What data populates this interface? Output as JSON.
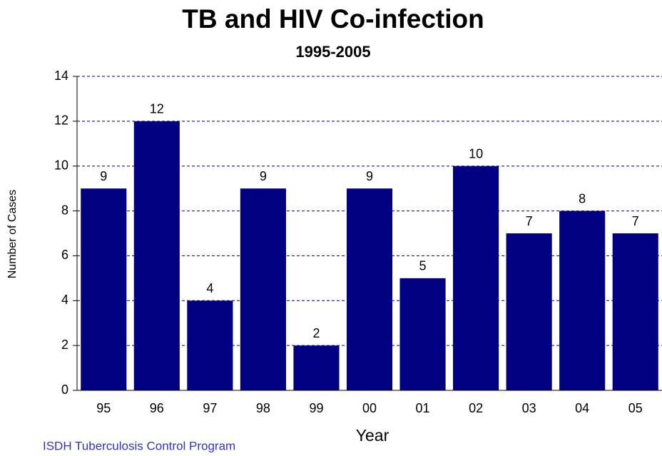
{
  "chart_data": {
    "type": "bar",
    "title": "TB and HIV Co-infection",
    "subtitle": "1995-2005",
    "y_label": "Number of Cases",
    "x_label": "Year",
    "annotation": "ISDH Tuberculosis Control Program",
    "categories": [
      "95",
      "96",
      "97",
      "98",
      "99",
      "00",
      "01",
      "02",
      "03",
      "04",
      "05"
    ],
    "values": [
      9,
      12,
      4,
      9,
      2,
      9,
      5,
      10,
      7,
      8,
      7
    ],
    "color": "#000080",
    "ylim": [
      0,
      14
    ],
    "yticks": [
      0,
      2,
      4,
      6,
      8,
      10,
      12,
      14
    ],
    "grid": true
  }
}
